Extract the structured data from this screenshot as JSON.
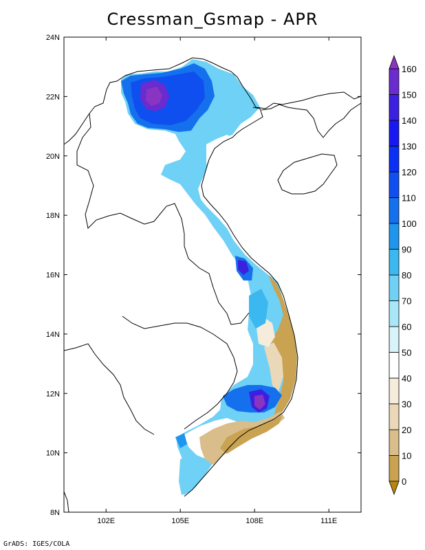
{
  "title": "Cressman_Gsmap - APR",
  "footer": "GrADS: IGES/COLA",
  "map": {
    "lon_range": [
      100.3,
      112.3
    ],
    "lat_range": [
      8,
      24
    ],
    "x_ticks": [
      "102E",
      "105E",
      "108E",
      "111E"
    ],
    "x_tick_values": [
      102,
      105,
      108,
      111
    ],
    "y_ticks": [
      "8N",
      "10N",
      "12N",
      "14N",
      "16N",
      "18N",
      "20N",
      "22N",
      "24N"
    ],
    "y_tick_values": [
      8,
      10,
      12,
      14,
      16,
      18,
      20,
      22,
      24
    ]
  },
  "colorbar": {
    "levels": [
      "0",
      "10",
      "20",
      "30",
      "40",
      "50",
      "60",
      "70",
      "80",
      "90",
      "100",
      "110",
      "120",
      "130",
      "140",
      "150",
      "160"
    ],
    "colors": [
      "#b8860b",
      "#c9a252",
      "#d9bd8a",
      "#ead8b8",
      "#f5ecdc",
      "#ffffff",
      "#d8f4fb",
      "#a8e6f8",
      "#6fd1f5",
      "#3cb8f0",
      "#1e96ee",
      "#1470ec",
      "#0f4ff0",
      "#0a30f5",
      "#1818f2",
      "#3c20e0",
      "#6a2bcf",
      "#8a34c2"
    ]
  }
}
